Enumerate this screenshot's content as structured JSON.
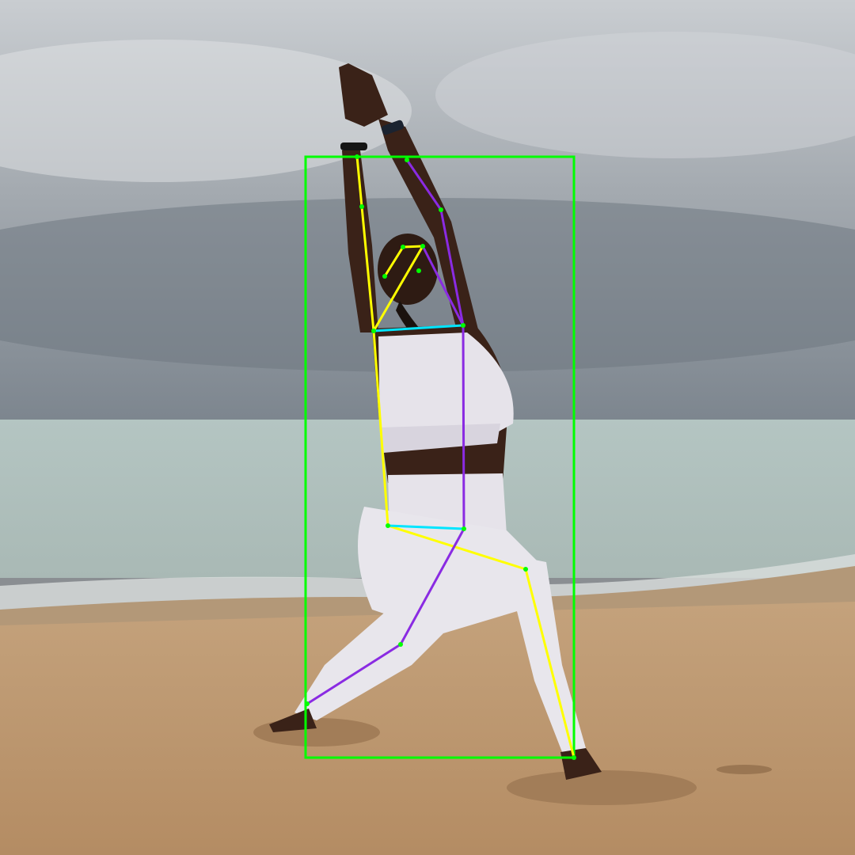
{
  "image": {
    "description_free": true,
    "colors": {
      "sky_top": "#c9cdd1",
      "sky_mid": "#9da3aa",
      "clouds_dark": "#6d7680",
      "sea": "#9fb3b0",
      "sea_far": "#b5c6c3",
      "foam": "#dfe4e2",
      "sand": "#c09a72",
      "sand_dark": "#a27d58",
      "skin": "#3a2218",
      "outfit": "#e6e3ea",
      "hair": "#1a120e"
    }
  },
  "overlay": {
    "bbox_color": "#00ff00",
    "left_side_color": "#ffff00",
    "right_side_color": "#8a2be2",
    "cross_color": "#00e5ff",
    "keypoint_color": "#00ff00"
  }
}
